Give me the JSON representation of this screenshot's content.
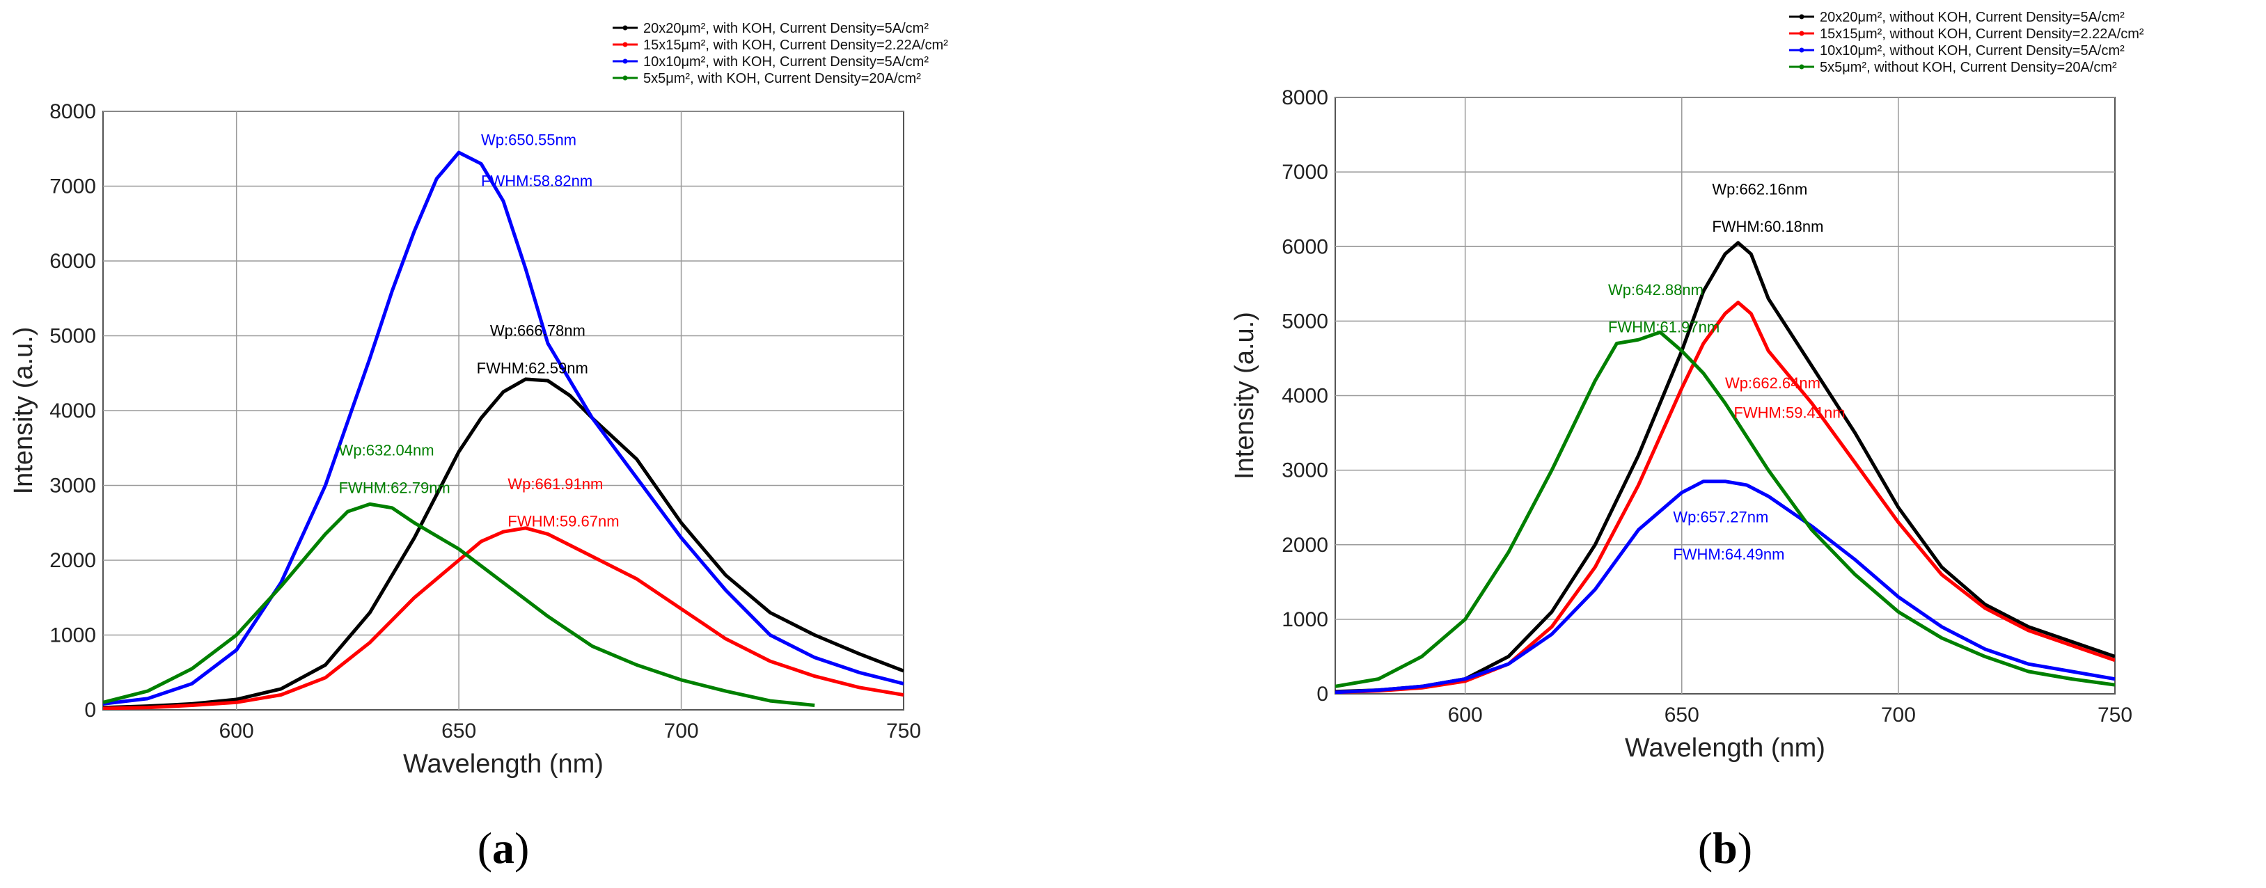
{
  "chart_data": [
    {
      "type": "line",
      "panel_label": "a",
      "xlabel": "Wavelength (nm)",
      "ylabel": "Intensity (a.u.)",
      "xlim": [
        570,
        750
      ],
      "ylim": [
        0,
        8000
      ],
      "xticks": [
        600,
        650,
        700,
        750
      ],
      "yticks": [
        0,
        1000,
        2000,
        3000,
        4000,
        5000,
        6000,
        7000,
        8000
      ],
      "grid": true,
      "legend_position": "top-right",
      "series": [
        {
          "name": "20x20μm², with KOH, Current Density=5A/cm²",
          "color": "#000000",
          "x": [
            570,
            580,
            590,
            600,
            610,
            620,
            630,
            640,
            650,
            655,
            660,
            665,
            670,
            675,
            680,
            690,
            700,
            710,
            720,
            730,
            740,
            750
          ],
          "y": [
            30,
            50,
            80,
            140,
            280,
            600,
            1300,
            2300,
            3450,
            3900,
            4250,
            4420,
            4400,
            4200,
            3900,
            3350,
            2500,
            1800,
            1300,
            1000,
            750,
            520
          ]
        },
        {
          "name": "15x15μm², with KOH, Current Density=2.22A/cm²",
          "color": "#ff0000",
          "x": [
            570,
            580,
            590,
            600,
            610,
            620,
            630,
            640,
            650,
            655,
            660,
            665,
            670,
            680,
            690,
            700,
            710,
            720,
            730,
            740,
            750
          ],
          "y": [
            20,
            30,
            60,
            100,
            200,
            430,
            900,
            1500,
            2000,
            2250,
            2380,
            2430,
            2350,
            2050,
            1750,
            1350,
            950,
            650,
            450,
            300,
            200
          ]
        },
        {
          "name": "10x10μm², with KOH, Current Density=5A/cm²",
          "color": "#0000ff",
          "x": [
            570,
            580,
            590,
            600,
            610,
            620,
            630,
            635,
            640,
            645,
            650,
            655,
            660,
            665,
            670,
            680,
            690,
            700,
            710,
            720,
            730,
            740,
            750
          ],
          "y": [
            80,
            150,
            350,
            800,
            1700,
            3000,
            4700,
            5600,
            6400,
            7100,
            7450,
            7300,
            6800,
            5900,
            4900,
            3900,
            3100,
            2300,
            1600,
            1000,
            700,
            500,
            350
          ]
        },
        {
          "name": "5x5μm², with KOH, Current Density=20A/cm²",
          "color": "#008000",
          "x": [
            570,
            580,
            590,
            600,
            610,
            620,
            625,
            630,
            635,
            640,
            650,
            660,
            670,
            680,
            690,
            700,
            710,
            720,
            730
          ],
          "y": [
            100,
            250,
            550,
            1000,
            1650,
            2350,
            2650,
            2750,
            2700,
            2500,
            2150,
            1700,
            1250,
            850,
            600,
            400,
            250,
            120,
            60
          ]
        }
      ],
      "annotations": [
        {
          "text": "Wp:650.55nm",
          "x": 655,
          "y": 7550,
          "color": "#0000ff"
        },
        {
          "text": "FWHM:58.82nm",
          "x": 655,
          "y": 7000,
          "color": "#0000ff"
        },
        {
          "text": "Wp:666.78nm",
          "x": 657,
          "y": 5000,
          "color": "#000000"
        },
        {
          "text": "FWHM:62.59nm",
          "x": 654,
          "y": 4500,
          "color": "#000000"
        },
        {
          "text": "Wp:632.04nm",
          "x": 623,
          "y": 3400,
          "color": "#008000"
        },
        {
          "text": "FWHM:62.79nm",
          "x": 623,
          "y": 2900,
          "color": "#008000"
        },
        {
          "text": "Wp:661.91nm",
          "x": 661,
          "y": 2950,
          "color": "#ff0000"
        },
        {
          "text": "FWHM:59.67nm",
          "x": 661,
          "y": 2450,
          "color": "#ff0000"
        }
      ]
    },
    {
      "type": "line",
      "panel_label": "b",
      "xlabel": "Wavelength (nm)",
      "ylabel": "Intensity (a.u.)",
      "xlim": [
        570,
        750
      ],
      "ylim": [
        0,
        8000
      ],
      "xticks": [
        600,
        650,
        700,
        750
      ],
      "yticks": [
        0,
        1000,
        2000,
        3000,
        4000,
        5000,
        6000,
        7000,
        8000
      ],
      "grid": true,
      "legend_position": "top-right",
      "series": [
        {
          "name": "20x20μm², without KOH, Current Density=5A/cm²",
          "color": "#000000",
          "x": [
            570,
            580,
            590,
            600,
            610,
            620,
            630,
            640,
            650,
            655,
            660,
            663,
            666,
            670,
            680,
            690,
            700,
            710,
            720,
            730,
            740,
            750
          ],
          "y": [
            30,
            50,
            100,
            200,
            500,
            1100,
            2000,
            3200,
            4600,
            5400,
            5900,
            6050,
            5900,
            5300,
            4400,
            3500,
            2500,
            1700,
            1200,
            900,
            700,
            500
          ]
        },
        {
          "name": "15x15μm², without KOH, Current Density=2.22A/cm²",
          "color": "#ff0000",
          "x": [
            570,
            580,
            590,
            600,
            610,
            620,
            630,
            640,
            650,
            655,
            660,
            663,
            666,
            670,
            680,
            690,
            700,
            710,
            720,
            730,
            740,
            750
          ],
          "y": [
            20,
            40,
            80,
            170,
            400,
            900,
            1700,
            2800,
            4100,
            4700,
            5100,
            5250,
            5100,
            4600,
            3900,
            3100,
            2300,
            1600,
            1150,
            850,
            650,
            450
          ]
        },
        {
          "name": "10x10μm², without KOH, Current Density=5A/cm²",
          "color": "#0000ff",
          "x": [
            570,
            580,
            590,
            600,
            610,
            620,
            630,
            640,
            650,
            655,
            660,
            665,
            670,
            680,
            690,
            700,
            710,
            720,
            730,
            740,
            750
          ],
          "y": [
            20,
            50,
            100,
            200,
            400,
            800,
            1400,
            2200,
            2700,
            2850,
            2850,
            2800,
            2650,
            2250,
            1800,
            1300,
            900,
            600,
            400,
            300,
            200
          ]
        },
        {
          "name": "5x5μm², without KOH, Current Density=20A/cm²",
          "color": "#008000",
          "x": [
            570,
            580,
            590,
            600,
            610,
            620,
            630,
            635,
            640,
            645,
            650,
            655,
            660,
            670,
            680,
            690,
            700,
            710,
            720,
            730,
            740,
            750
          ],
          "y": [
            100,
            200,
            500,
            1000,
            1900,
            3000,
            4200,
            4700,
            4750,
            4850,
            4600,
            4300,
            3900,
            3000,
            2200,
            1600,
            1100,
            750,
            500,
            300,
            200,
            120
          ]
        }
      ],
      "annotations": [
        {
          "text": "Wp:662.16nm",
          "x": 657,
          "y": 6700,
          "color": "#000000"
        },
        {
          "text": "FWHM:60.18nm",
          "x": 657,
          "y": 6200,
          "color": "#000000"
        },
        {
          "text": "Wp:642.88nm",
          "x": 633,
          "y": 5350,
          "color": "#008000"
        },
        {
          "text": "FWHM:61.97nm",
          "x": 633,
          "y": 4850,
          "color": "#008000"
        },
        {
          "text": "Wp:662.64nm",
          "x": 660,
          "y": 4100,
          "color": "#ff0000"
        },
        {
          "text": "FWHM:59.41nm",
          "x": 662,
          "y": 3700,
          "color": "#ff0000"
        },
        {
          "text": "Wp:657.27nm",
          "x": 648,
          "y": 2300,
          "color": "#0000ff"
        },
        {
          "text": "FWHM:64.49nm",
          "x": 648,
          "y": 1800,
          "color": "#0000ff"
        }
      ]
    }
  ]
}
